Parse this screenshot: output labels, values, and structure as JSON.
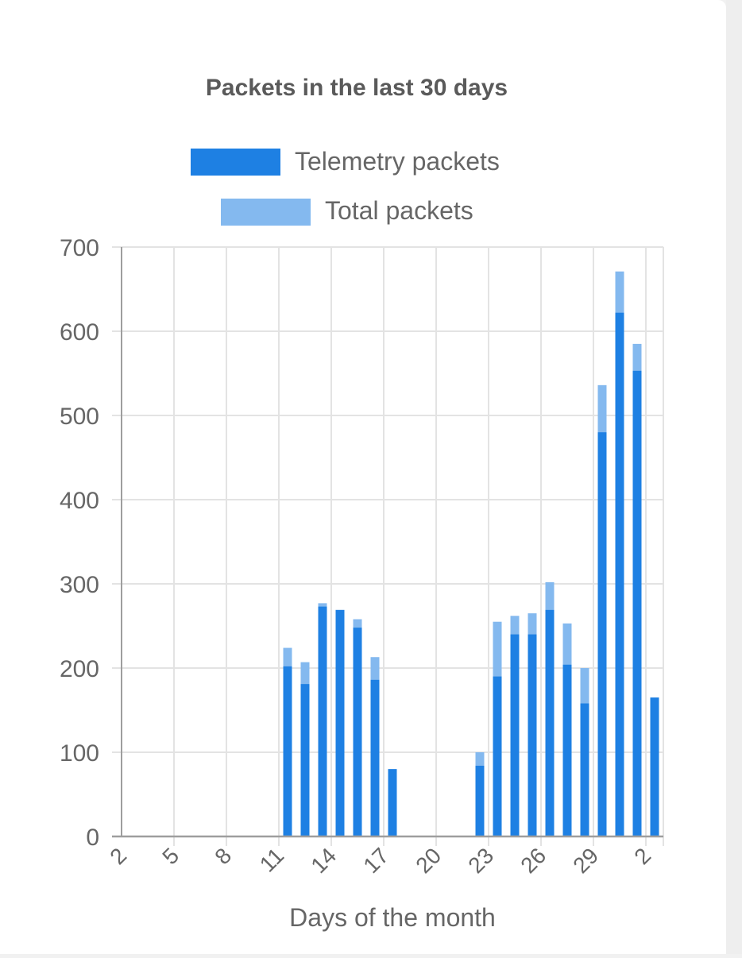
{
  "colors": {
    "telemetry": "#1e80e3",
    "total": "#84b9ef",
    "grid": "#e3e3e3",
    "axis": "#9e9e9e",
    "title": "#5a5a5a",
    "text": "#666666"
  },
  "chart_data": {
    "type": "bar",
    "title": "Packets in the last 30 days",
    "xlabel": "Days of the month",
    "ylabel": "",
    "ylim": [
      0,
      700
    ],
    "yticks": [
      0,
      100,
      200,
      300,
      400,
      500,
      600,
      700
    ],
    "legend_position": "top",
    "stacked": false,
    "categories": [
      "2",
      "3",
      "4",
      "5",
      "6",
      "7",
      "8",
      "9",
      "10",
      "11",
      "12",
      "13",
      "14",
      "15",
      "16",
      "17",
      "18",
      "19",
      "20",
      "21",
      "22",
      "23",
      "24",
      "25",
      "26",
      "27",
      "28",
      "29",
      "30",
      "31",
      "1",
      "2"
    ],
    "tick_labels": [
      "2",
      "5",
      "8",
      "11",
      "14",
      "17",
      "20",
      "23",
      "26",
      "29",
      "2"
    ],
    "series": [
      {
        "name": "Telemetry packets",
        "values": [
          0,
          0,
          0,
          0,
          0,
          0,
          0,
          0,
          0,
          202,
          181,
          273,
          269,
          248,
          186,
          80,
          0,
          0,
          0,
          0,
          84,
          190,
          240,
          240,
          269,
          204,
          158,
          480,
          622,
          553,
          165,
          0
        ]
      },
      {
        "name": "Total packets",
        "values": [
          0,
          0,
          0,
          0,
          0,
          0,
          0,
          0,
          0,
          224,
          207,
          277,
          269,
          258,
          213,
          80,
          0,
          0,
          0,
          0,
          100,
          255,
          262,
          265,
          302,
          253,
          200,
          536,
          671,
          585,
          165,
          0
        ]
      }
    ]
  }
}
